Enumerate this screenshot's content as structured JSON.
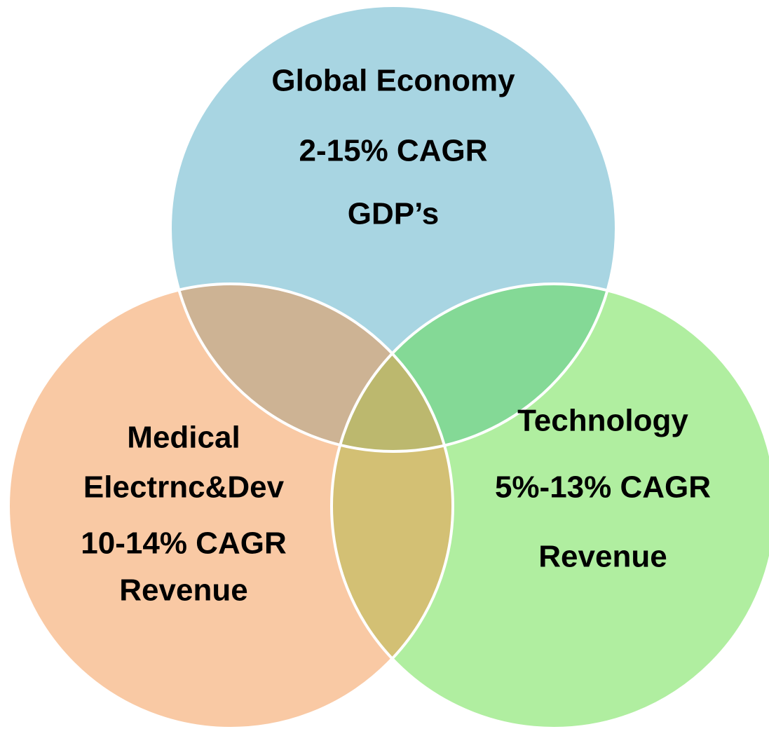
{
  "circles": [
    {
      "lines": [
        "Global Economy",
        "2-15% CAGR",
        "GDP’s"
      ]
    },
    {
      "lines": [
        "Medical",
        "Electrnc&Dev",
        "10-14% CAGR",
        "Revenue"
      ]
    },
    {
      "lines": [
        "Technology",
        "5%-13% CAGR",
        "Revenue"
      ]
    }
  ]
}
